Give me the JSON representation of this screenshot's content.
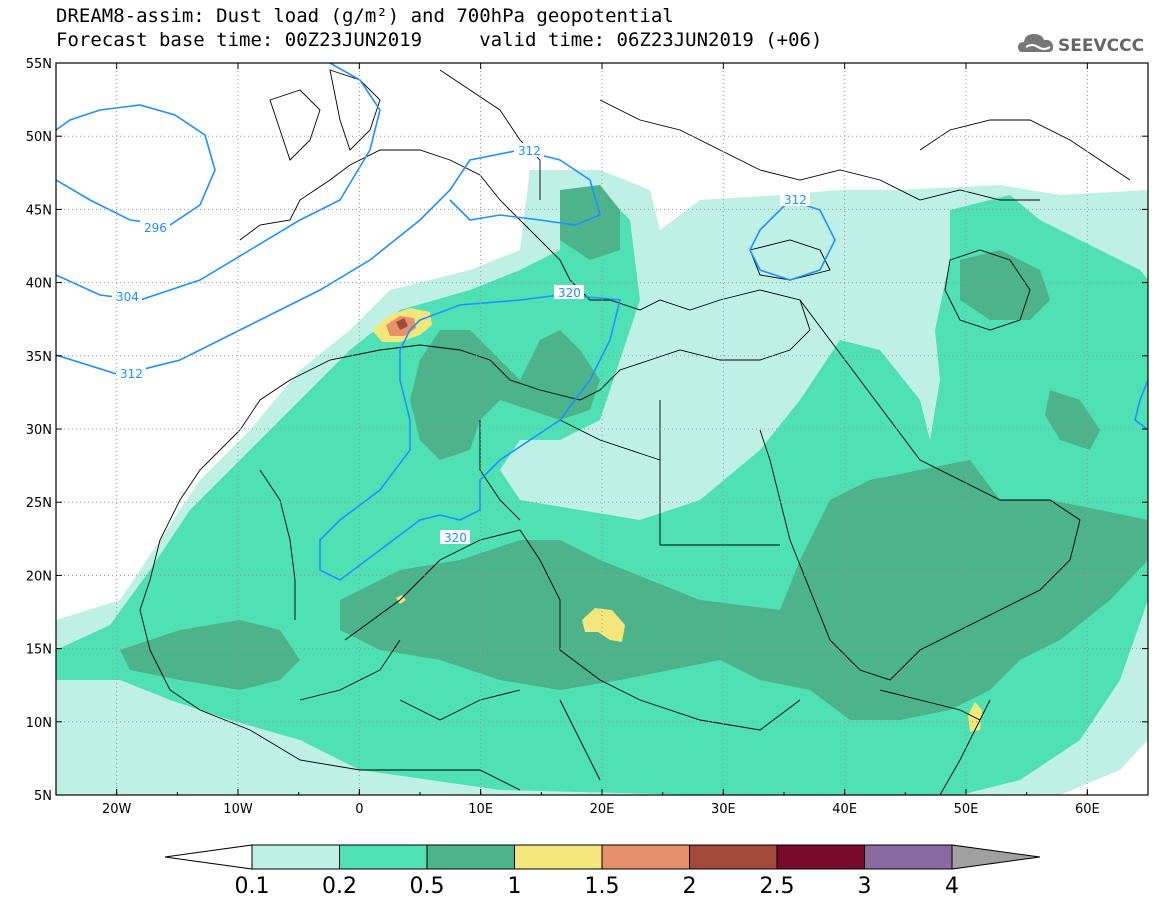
{
  "title": {
    "line1": "DREAM8-assim: Dust load (g/m²) and 700hPa geopotential",
    "line2": "Forecast base time: 00Z23JUN2019     valid time: 06Z23JUN2019 (+06)"
  },
  "logo": {
    "text": "SEEVCCC",
    "icon": "cloud-icon"
  },
  "axes": {
    "lat_labels": [
      "55N",
      "50N",
      "45N",
      "40N",
      "35N",
      "30N",
      "25N",
      "20N",
      "15N",
      "10N",
      "5N"
    ],
    "lon_labels": [
      "20W",
      "10W",
      "0",
      "10E",
      "20E",
      "30E",
      "40E",
      "50E",
      "60E"
    ],
    "lon_range": [
      -25,
      65
    ],
    "lat_range": [
      5,
      55
    ]
  },
  "colorbar": {
    "labels": [
      "0.1",
      "0.2",
      "0.5",
      "1",
      "1.5",
      "2",
      "2.5",
      "3",
      "4"
    ],
    "colors": [
      "#ffffff",
      "#bff0e6",
      "#4fe1b4",
      "#4cb38a",
      "#f3e67a",
      "#e7916a",
      "#a14a3c",
      "#7a0a2c",
      "#8a6aa0",
      "#a0a0a0"
    ]
  },
  "contours": {
    "color": "#1e90ff",
    "labels": [
      "296",
      "304",
      "312",
      "312",
      "312",
      "320",
      "320"
    ]
  }
}
